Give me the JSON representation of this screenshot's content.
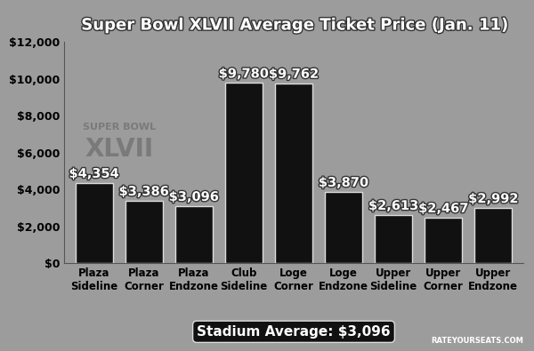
{
  "chart_data": {
    "type": "bar",
    "title": "Super Bowl XLVII Average Ticket Price (Jan. 11)",
    "categories": [
      "Plaza Sideline",
      "Plaza Corner",
      "Plaza Endzone",
      "Club Sideline",
      "Loge Corner",
      "Loge Endzone",
      "Upper Sideline",
      "Upper Corner",
      "Upper Endzone"
    ],
    "values": [
      4354,
      3386,
      3096,
      9780,
      9762,
      3870,
      2613,
      2467,
      2992
    ],
    "value_labels": [
      "$4,354",
      "$3,386",
      "$3,096",
      "$9,780",
      "$9,762",
      "$3,870",
      "$2,613",
      "$2,467",
      "$2,992"
    ],
    "data_labels": true,
    "color": "#111111",
    "ylim": [
      0,
      12000
    ],
    "yticks": [
      {
        "value": 0,
        "label": "$0"
      },
      {
        "value": 2000,
        "label": "$2,000"
      },
      {
        "value": 4000,
        "label": "$4,000"
      },
      {
        "value": 6000,
        "label": "$6,000"
      },
      {
        "value": 8000,
        "label": "$8,000"
      },
      {
        "value": 10000,
        "label": "$10,000"
      },
      {
        "value": 12000,
        "label": "$12,000"
      }
    ],
    "grid": false,
    "annotations": [
      "SUPER BOWL",
      "XLVII",
      "Stadium Average: $3,096",
      "RATEYOURSEATS.COM"
    ]
  }
}
